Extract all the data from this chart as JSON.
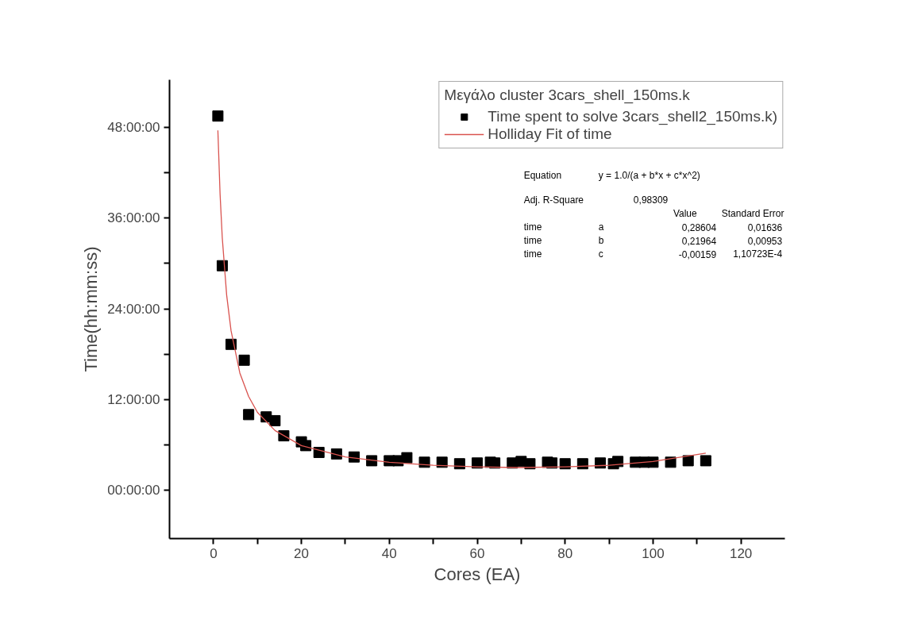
{
  "chart_data": {
    "type": "scatter",
    "xlabel": "Cores (EA)",
    "ylabel": "Time(hh:mm:ss)",
    "legend_title": "Μεγάλο cluster 3cars_shell_150ms.k",
    "xlim": [
      -10,
      130
    ],
    "ylim": [
      -6.4,
      54.3
    ],
    "xticks": [
      0,
      {
        "value": 10,
        "label": null
      },
      20,
      {
        "value": 30,
        "label": null
      },
      40,
      {
        "value": 50,
        "label": null
      },
      60,
      {
        "value": 70,
        "label": null
      },
      80,
      {
        "value": 90,
        "label": null
      },
      100,
      {
        "value": 110,
        "label": null
      },
      120
    ],
    "yticks": [
      {
        "value": 0,
        "label": "00:00:00"
      },
      {
        "value": 6,
        "label": null
      },
      {
        "value": 12,
        "label": "12:00:00"
      },
      {
        "value": 18,
        "label": null
      },
      {
        "value": 24,
        "label": "24:00:00"
      },
      {
        "value": 30,
        "label": null
      },
      {
        "value": 36,
        "label": "36:00:00"
      },
      {
        "value": 42,
        "label": null
      },
      {
        "value": 48,
        "label": "48:00:00"
      }
    ],
    "grid": false,
    "legend": "top right",
    "series": [
      {
        "name": "Time spent to solve 3cars_shell2_150ms.k)",
        "marker": "square",
        "color": "#000000",
        "x": [
          1,
          2,
          4,
          7,
          8,
          12,
          14,
          16,
          20,
          21,
          24,
          28,
          32,
          36,
          40,
          42,
          44,
          48,
          52,
          56,
          60,
          63,
          64,
          68,
          70,
          72,
          76,
          77,
          80,
          84,
          88,
          91,
          92,
          96,
          98,
          100,
          104,
          108,
          112
        ],
        "values": [
          49.5,
          29.7,
          19.3,
          17.2,
          10.0,
          9.7,
          9.2,
          7.2,
          6.4,
          5.9,
          5.0,
          4.8,
          4.4,
          3.9,
          3.9,
          3.9,
          4.3,
          3.7,
          3.7,
          3.5,
          3.6,
          3.7,
          3.6,
          3.6,
          3.8,
          3.5,
          3.7,
          3.6,
          3.5,
          3.5,
          3.6,
          3.5,
          3.8,
          3.7,
          3.7,
          3.7,
          3.7,
          3.9,
          3.9
        ]
      },
      {
        "name": "Holliday Fit of time",
        "type": "line",
        "marker": "none",
        "line_style": "solid",
        "color": "#d9534f",
        "x": [
          1,
          1.5,
          2,
          3,
          4,
          6,
          8,
          10,
          14,
          20,
          30,
          40,
          50,
          60,
          69,
          80,
          90,
          100,
          112
        ],
        "values": [
          47.6,
          39.2,
          33.4,
          25.8,
          21.1,
          15.5,
          12.4,
          10.3,
          7.9,
          5.9,
          4.4,
          3.7,
          3.3,
          3.1,
          3.0,
          3.1,
          3.3,
          3.8,
          4.9
        ]
      }
    ],
    "annotations": [
      "Equation",
      "y = 1.0/(a + b*x + c*x^2)",
      "Adj. R-Square",
      "0,98309",
      "Value",
      "Standard Error",
      "time",
      "a",
      "0,28604",
      "0,01636",
      "time",
      "b",
      "0,21964",
      "0,00953",
      "time",
      "c",
      "-0,00159",
      "1,10723E-4"
    ]
  }
}
